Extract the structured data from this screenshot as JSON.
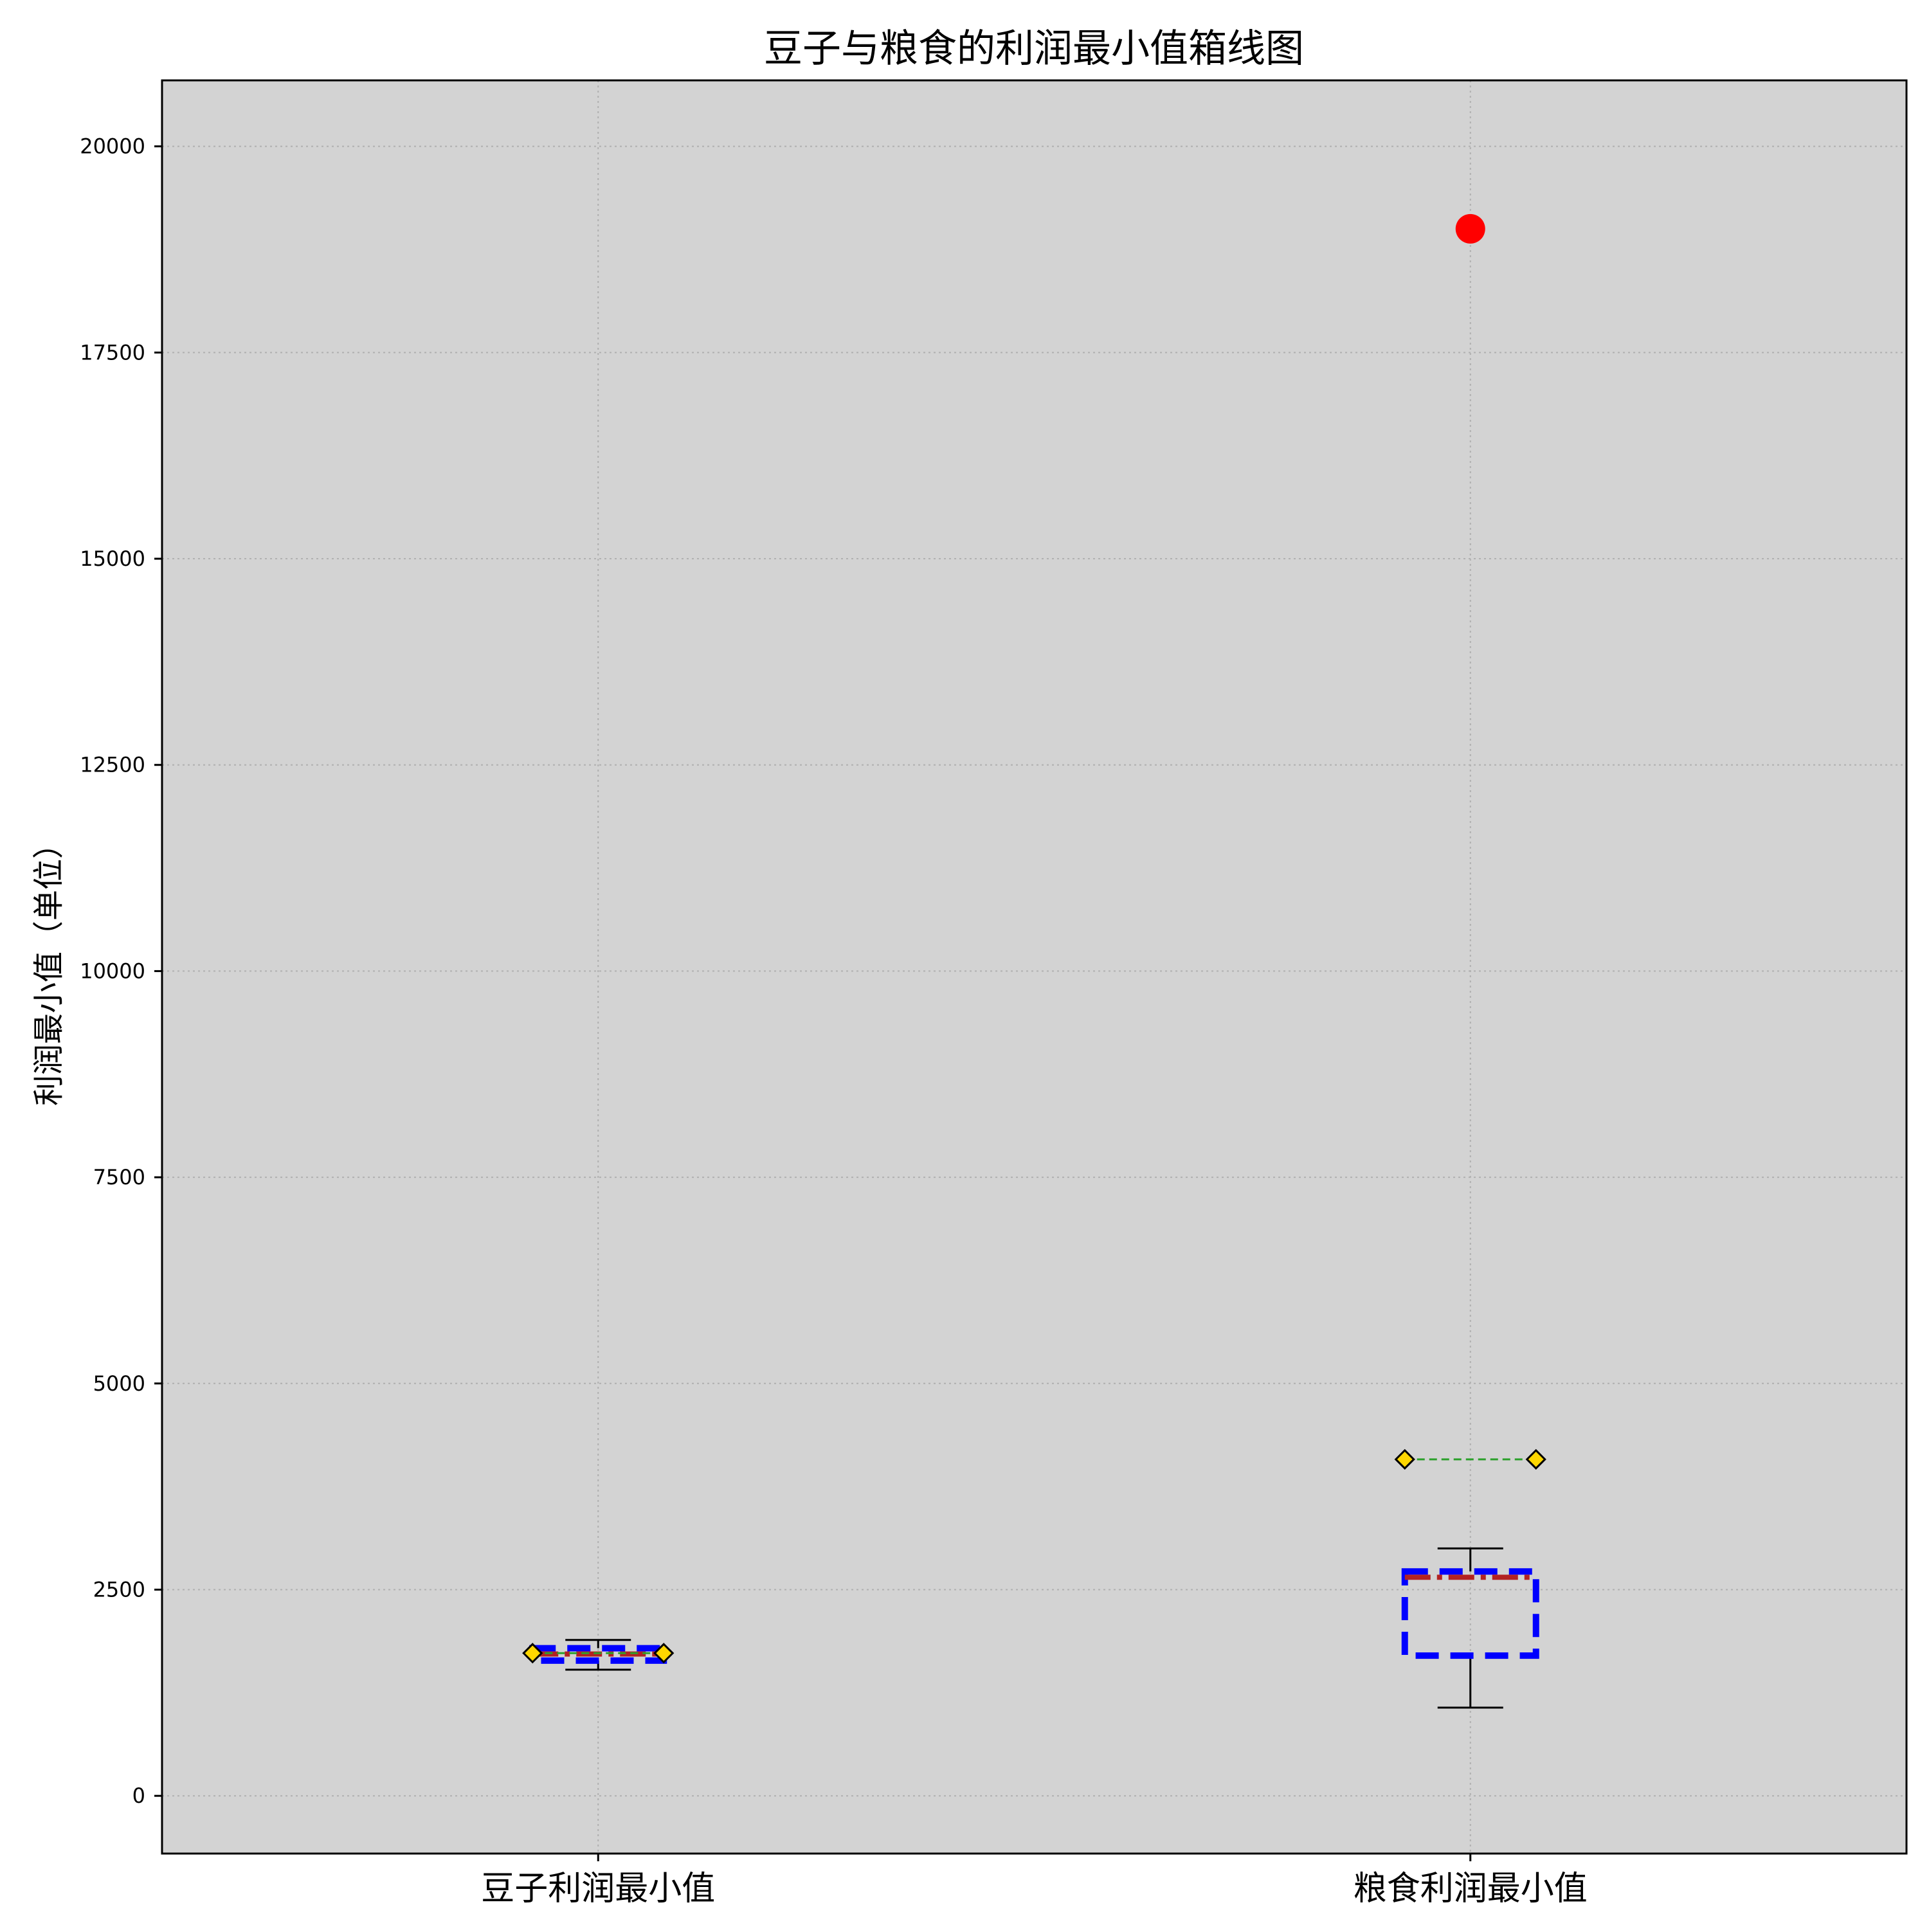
{
  "chart_data": {
    "type": "box",
    "title": "豆子与粮食的利润最小值箱线图",
    "xlabel": "",
    "ylabel": "利润最小值（单位）",
    "ylim": [
      -700,
      20800
    ],
    "yticks": [
      0,
      2500,
      5000,
      7500,
      10000,
      12500,
      15000,
      17500,
      20000
    ],
    "grid": true,
    "colors": {
      "plot_background": "#d3d3d3",
      "box_edge": "#0000ff",
      "median": "#b22222",
      "mean_line": "#2ca02c",
      "mean_marker_fill": "#ffd700",
      "whisker": "#000000",
      "outlier": "#ff0000"
    },
    "categories": [
      "豆子利润最小值",
      "粮食利润最小值"
    ],
    "boxes": [
      {
        "name": "豆子利润最小值",
        "whisker_low": 1530,
        "q1": 1640,
        "median": 1720,
        "q3": 1790,
        "whisker_high": 1890,
        "mean": 1730,
        "outliers": []
      },
      {
        "name": "粮食利润最小值",
        "whisker_low": 1070,
        "q1": 1700,
        "median": 2650,
        "q3": 2720,
        "whisker_high": 3000,
        "mean": 4080,
        "outliers": [
          19000
        ]
      }
    ]
  }
}
